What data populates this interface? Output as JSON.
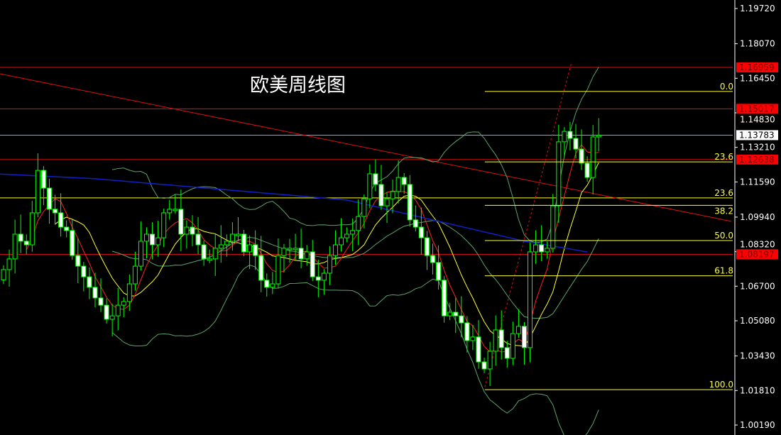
{
  "chart_data": {
    "type": "candlestick",
    "title": "欧美周线图",
    "y_axis": {
      "range": [
        1.0,
        1.2
      ],
      "ticks": [
        "1.19720",
        "1.18070",
        "1.16450",
        "1.14830",
        "1.13210",
        "1.11590",
        "1.09940",
        "1.08320",
        "1.06700",
        "1.05080",
        "1.03430",
        "1.01810",
        "1.00190"
      ]
    },
    "first_open": 1.07,
    "closes": [
      1.0748,
      1.0798,
      1.0914,
      1.0881,
      1.0864,
      1.1014,
      1.1213,
      1.113,
      1.1031,
      1.1014,
      1.0947,
      1.0931,
      1.0814,
      1.0764,
      1.0714,
      1.0665,
      1.0615,
      1.0581,
      1.0515,
      1.0531,
      1.0581,
      1.0598,
      1.0681,
      1.0764,
      1.0881,
      1.0914,
      1.0864,
      1.0897,
      1.1014,
      1.1031,
      1.1031,
      1.0914,
      1.0947,
      1.0914,
      1.0864,
      1.0798,
      1.0798,
      1.0848,
      1.0864,
      1.0881,
      1.0914,
      1.0914,
      1.0831,
      1.0864,
      1.0814,
      1.0698,
      1.0665,
      1.0681,
      1.0814,
      1.0848,
      1.0848,
      1.0848,
      1.0798,
      1.0831,
      1.0714,
      1.0698,
      1.0731,
      1.0814,
      1.0864,
      1.0897,
      1.0914,
      1.0931,
      1.0997,
      1.108,
      1.1197,
      1.1147,
      1.1047,
      1.108,
      1.1114,
      1.118,
      1.1147,
      1.0981,
      1.0947,
      1.0897,
      1.0814,
      1.0781,
      1.0698,
      1.0531,
      1.0548,
      1.0531,
      1.0498,
      1.0415,
      1.0432,
      1.0315,
      1.0282,
      1.0365,
      1.0465,
      1.0382,
      1.0332,
      1.0448,
      1.0482,
      1.0382,
      1.0831,
      1.0864,
      1.0831,
      1.0848,
      1.1047,
      1.1347,
      1.1396,
      1.1363,
      1.1313,
      1.1247,
      1.118,
      1.137,
      1.1378
    ],
    "indicators": {
      "ma_fast": {
        "period": 5,
        "color": "#ff2020"
      },
      "ma_slow": {
        "period": 10,
        "color": "#ffff33"
      },
      "bollinger": {
        "period": 20,
        "stddev": 2,
        "color": "#5fa36a"
      },
      "ma_long": {
        "color": "#1020c8",
        "points": [
          [
            -0.6,
            1.1196
          ],
          [
            16,
            1.1174
          ],
          [
            60,
            1.1074
          ],
          [
            91,
            1.0881
          ],
          [
            102,
            1.0831
          ]
        ]
      }
    },
    "horizontal_lines": [
      {
        "price": 1.16959,
        "label": "1.16959",
        "color": "#e01010"
      },
      {
        "price": 1.15017,
        "label": "1.15017",
        "color": "#e01010"
      },
      {
        "price": 1.13783,
        "label": "1.13783",
        "color": "#9aa0a8"
      },
      {
        "price": 1.12638,
        "label": "1.12638",
        "color": "#e01010"
      },
      {
        "price": 1.08197,
        "label": "1.08197",
        "color": "#e01010"
      }
    ],
    "full_width_fib_line": {
      "price": 1.1084,
      "label": "23.6"
    },
    "fibonacci": {
      "start_index": 84.1,
      "levels": [
        {
          "label": "0.0",
          "price": 1.1583
        },
        {
          "label": "23.6",
          "price": 1.1253
        },
        {
          "label": "38.2",
          "price": 1.1049
        },
        {
          "label": "50.0",
          "price": 1.0884
        },
        {
          "label": "61.8",
          "price": 1.0719
        },
        {
          "label": "100.0",
          "price": 1.0185
        }
      ]
    },
    "trendline": {
      "from": [
        -0.6,
        1.1666
      ],
      "to": [
        127.2,
        1.0974
      ],
      "color": "#e01010"
    },
    "zigzag": {
      "from": [
        84.1,
        1.0197
      ],
      "to": [
        99.2,
        1.1714
      ],
      "color": "#e01010"
    },
    "colors": {
      "bull_body": "#000000",
      "bear_body": "#ffffff",
      "candle_outline": "#00ff00",
      "background": "#000000",
      "current_price_label_bg": "#ffffff",
      "level_label_bg": "#ff0000"
    }
  }
}
